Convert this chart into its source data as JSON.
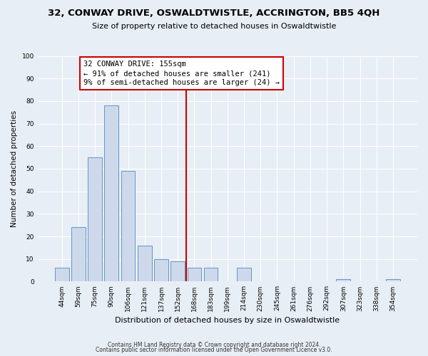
{
  "title": "32, CONWAY DRIVE, OSWALDTWISTLE, ACCRINGTON, BB5 4QH",
  "subtitle": "Size of property relative to detached houses in Oswaldtwistle",
  "xlabel": "Distribution of detached houses by size in Oswaldtwistle",
  "ylabel": "Number of detached properties",
  "bar_labels": [
    "44sqm",
    "59sqm",
    "75sqm",
    "90sqm",
    "106sqm",
    "121sqm",
    "137sqm",
    "152sqm",
    "168sqm",
    "183sqm",
    "199sqm",
    "214sqm",
    "230sqm",
    "245sqm",
    "261sqm",
    "276sqm",
    "292sqm",
    "307sqm",
    "323sqm",
    "338sqm",
    "354sqm"
  ],
  "bar_values": [
    6,
    24,
    55,
    78,
    49,
    16,
    10,
    9,
    6,
    6,
    0,
    6,
    0,
    0,
    0,
    0,
    0,
    1,
    0,
    0,
    1
  ],
  "bar_color": "#cdd9ea",
  "bar_edge_color": "#6495c8",
  "vline_x": 7.5,
  "vline_color": "#cc0000",
  "annotation_title": "32 CONWAY DRIVE: 155sqm",
  "annotation_line1": "← 91% of detached houses are smaller (241)",
  "annotation_line2": "9% of semi-detached houses are larger (24) →",
  "annotation_box_color": "#ffffff",
  "annotation_box_edge": "#cc0000",
  "ylim": [
    0,
    100
  ],
  "yticks": [
    0,
    10,
    20,
    30,
    40,
    50,
    60,
    70,
    80,
    90,
    100
  ],
  "footer1": "Contains HM Land Registry data © Crown copyright and database right 2024.",
  "footer2": "Contains public sector information licensed under the Open Government Licence v3.0.",
  "bg_color": "#e8eef5",
  "grid_color": "#ffffff",
  "title_fontsize": 9.5,
  "subtitle_fontsize": 8,
  "ylabel_fontsize": 7.5,
  "xlabel_fontsize": 8,
  "tick_fontsize": 6.5,
  "ann_fontsize": 7.5
}
